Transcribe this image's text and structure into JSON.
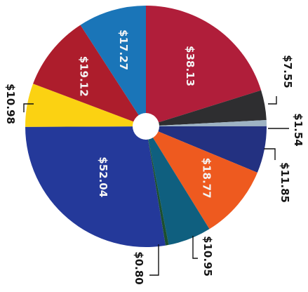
{
  "chart_data": {
    "type": "pie",
    "title": "",
    "donut_hole": true,
    "slices": [
      {
        "label": "$38.13",
        "value": 38.13,
        "color": "#b01e3a",
        "label_position": "inside"
      },
      {
        "label": "$7.55",
        "value": 7.55,
        "color": "#2e2e30",
        "label_position": "outside"
      },
      {
        "label": "$1.54",
        "value": 1.54,
        "color": "#9eb3c4",
        "label_position": "outside"
      },
      {
        "label": "$11.85",
        "value": 11.85,
        "color": "#233181",
        "label_position": "outside"
      },
      {
        "label": "$18.77",
        "value": 18.77,
        "color": "#ee5a1f",
        "label_position": "inside"
      },
      {
        "label": "$10.95",
        "value": 10.95,
        "color": "#0f5f7f",
        "label_position": "outside"
      },
      {
        "label": "$0.80",
        "value": 0.8,
        "color": "#1c4f2f",
        "label_position": "outside"
      },
      {
        "label": "$52.04",
        "value": 52.04,
        "color": "#24399a",
        "label_position": "inside"
      },
      {
        "label": "$10.98",
        "value": 10.98,
        "color": "#fbd212",
        "label_position": "outside"
      },
      {
        "label": "$19.12",
        "value": 19.12,
        "color": "#ad1d2c",
        "label_position": "inside"
      },
      {
        "label": "$17.27",
        "value": 17.27,
        "color": "#1a75b8",
        "label_position": "inside"
      }
    ]
  }
}
